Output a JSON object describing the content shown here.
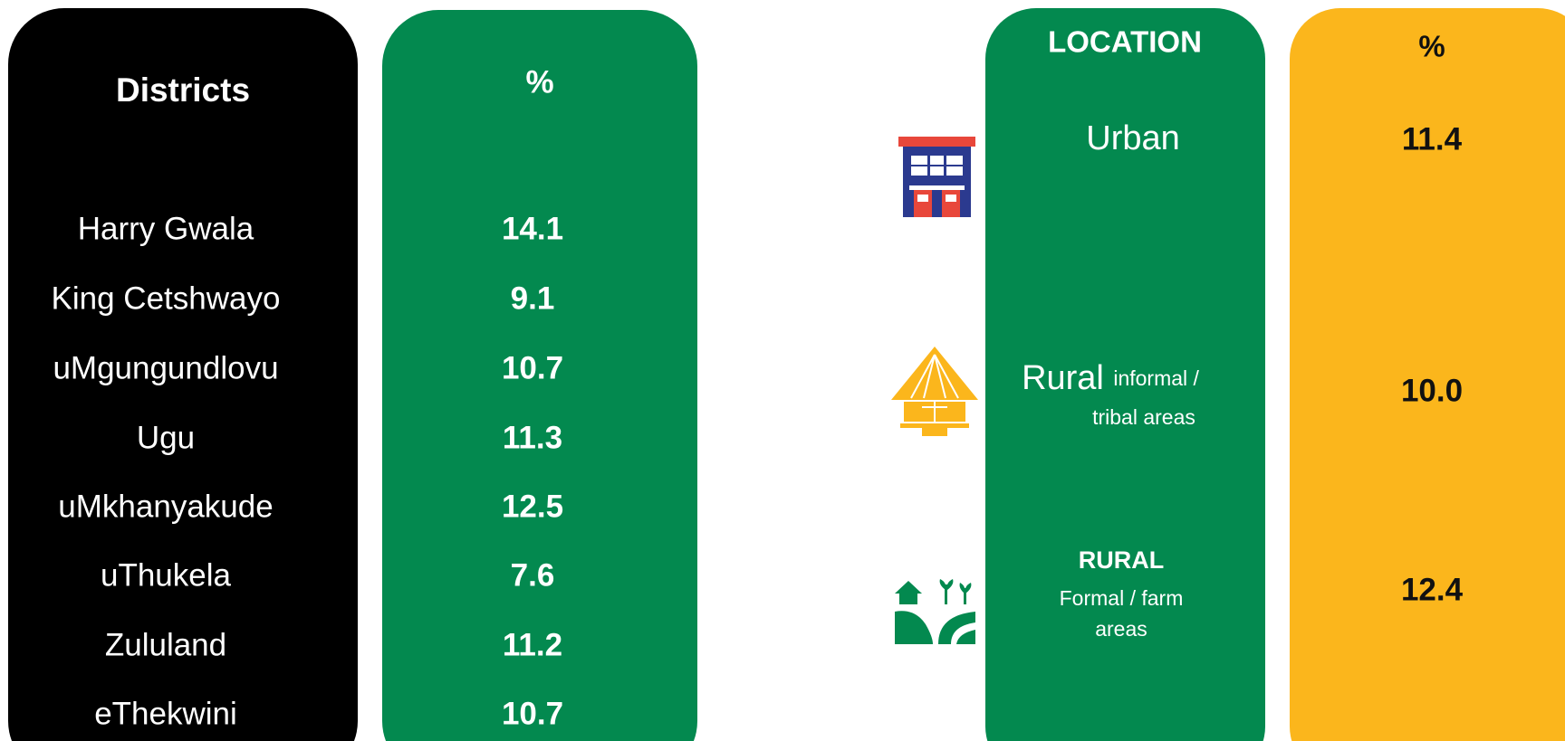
{
  "districts": {
    "header": "Districts",
    "value_header": "%",
    "rows": [
      {
        "name": "Harry Gwala",
        "value": "14.1"
      },
      {
        "name": "King Cetshwayo",
        "value": "9.1"
      },
      {
        "name": "uMgungundlovu",
        "value": "10.7"
      },
      {
        "name": "Ugu",
        "value": "11.3"
      },
      {
        "name": "uMkhanyakude",
        "value": "12.5"
      },
      {
        "name": "uThukela",
        "value": "7.6"
      },
      {
        "name": "Zululand",
        "value": "11.2"
      },
      {
        "name": "eThekwini",
        "value": "10.7"
      }
    ]
  },
  "locations": {
    "header": "LOCATION",
    "value_header": "%",
    "rows": [
      {
        "name": "Urban",
        "value": "11.4"
      },
      {
        "name": "Rural",
        "note": [
          "informal /",
          "tribal areas"
        ],
        "value": "10.0"
      },
      {
        "name": "RURAL",
        "note": [
          "Formal / farm",
          "areas"
        ],
        "value": "12.4"
      }
    ]
  }
}
